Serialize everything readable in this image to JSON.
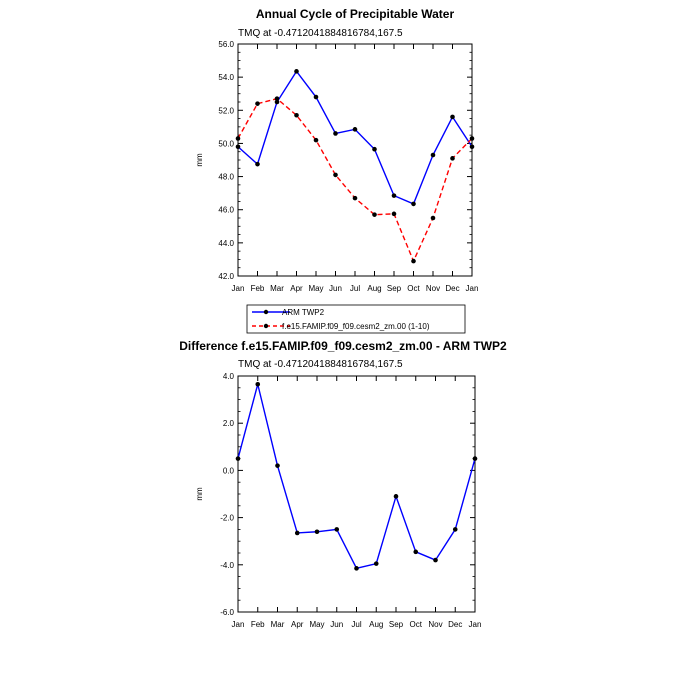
{
  "chart_data": [
    {
      "type": "line",
      "title": "Annual Cycle of Precipitable Water",
      "subtitle": "TMQ at -0.4712041884816784,167.5",
      "ylabel": "mm",
      "categories": [
        "Jan",
        "Feb",
        "Mar",
        "Apr",
        "May",
        "Jun",
        "Jul",
        "Aug",
        "Sep",
        "Oct",
        "Nov",
        "Dec",
        "Jan"
      ],
      "ylim": [
        42.0,
        56.0
      ],
      "yticks": [
        "42.0",
        "44.0",
        "46.0",
        "48.0",
        "50.0",
        "52.0",
        "54.0",
        "56.0"
      ],
      "series": [
        {
          "name": "ARM TWP2",
          "color": "#0000ff",
          "style": "solid",
          "values": [
            49.8,
            48.75,
            52.5,
            54.35,
            52.8,
            50.6,
            50.85,
            49.65,
            46.85,
            46.35,
            49.3,
            51.6,
            49.8
          ]
        },
        {
          "name": "f.e15.FAMIP.f09_f09.cesm2_zm.00 (1-10)",
          "color": "#ff0000",
          "style": "dashed",
          "values": [
            50.3,
            52.4,
            52.7,
            51.7,
            50.2,
            48.1,
            46.7,
            45.7,
            45.75,
            42.9,
            45.5,
            49.1,
            50.3
          ]
        }
      ],
      "legend": "bottom"
    },
    {
      "type": "line",
      "title": "Difference f.e15.FAMIP.f09_f09.cesm2_zm.00 - ARM TWP2",
      "subtitle": "TMQ at -0.4712041884816784,167.5",
      "ylabel": "mm",
      "categories": [
        "Jan",
        "Feb",
        "Mar",
        "Apr",
        "May",
        "Jun",
        "Jul",
        "Aug",
        "Sep",
        "Oct",
        "Nov",
        "Dec",
        "Jan"
      ],
      "ylim": [
        -6.0,
        4.0
      ],
      "yticks": [
        "-6.0",
        "-4.0",
        "-2.0",
        "0.0",
        "2.0",
        "4.0"
      ],
      "series": [
        {
          "name": "",
          "color": "#0000ff",
          "style": "solid",
          "values": [
            0.5,
            3.65,
            0.2,
            -2.65,
            -2.6,
            -2.5,
            -4.15,
            -3.95,
            -1.1,
            -3.45,
            -3.8,
            -2.5,
            0.5
          ]
        }
      ]
    }
  ]
}
